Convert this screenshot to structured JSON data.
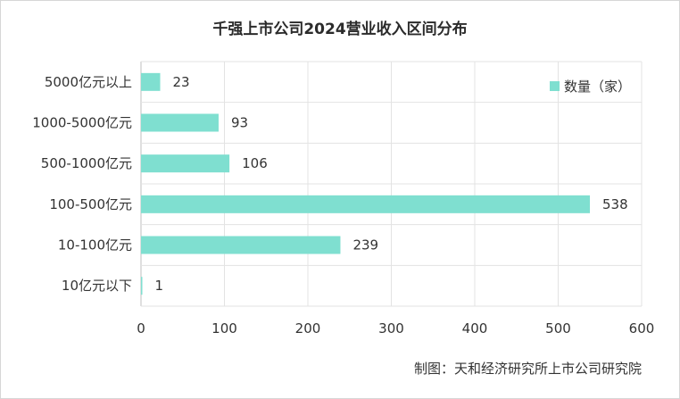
{
  "chart_data": {
    "type": "bar",
    "orientation": "horizontal",
    "title": "千强上市公司2024营业收入区间分布",
    "categories": [
      "5000亿元以上",
      "1000-5000亿元",
      "500-1000亿元",
      "100-500亿元",
      "10-100亿元",
      "10亿元以下"
    ],
    "series": [
      {
        "name": "数量（家）",
        "values": [
          23,
          93,
          106,
          538,
          239,
          1
        ]
      }
    ],
    "xlim": [
      0,
      600
    ],
    "xticks": [
      0,
      100,
      200,
      300,
      400,
      500,
      600
    ],
    "grid": true,
    "legend": "top-right",
    "bar_color": "#7fdfd0",
    "source_note": "制图：天和经济研究所上市公司研究院"
  }
}
